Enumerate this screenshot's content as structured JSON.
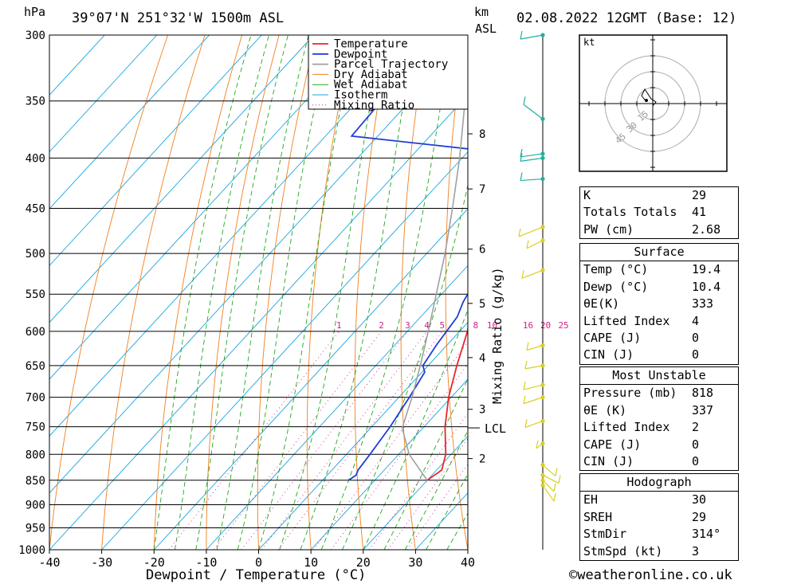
{
  "header": {
    "pressure_unit": "hPa",
    "location": "39°07'N  251°32'W  1500m  ASL",
    "height_unit": "km",
    "height_ref": "ASL",
    "datetime": "02.08.2022  12GMT  (Base: 12)"
  },
  "footer": {
    "credit": "©weatheronline.co.uk"
  },
  "colors": {
    "temperature": "#e8262b",
    "dewpoint": "#1f3fd6",
    "parcel": "#a0a0a0",
    "dry_adiabat": "#f07f1e",
    "wet_adiabat": "#1ea81e",
    "isotherm": "#1aa6e0",
    "mixing_ratio": "#d0218a",
    "wind": "#d8d020",
    "wind_upper": "#20b0a0"
  },
  "chart_data": {
    "type": "line",
    "title": "",
    "xlabel": "Dewpoint / Temperature (°C)",
    "ylabel": "hPa",
    "xlim": [
      -40,
      40
    ],
    "ylim": [
      1000,
      300
    ],
    "x_ticks": [
      "-40",
      "-30",
      "-20",
      "-10",
      "0",
      "10",
      "20",
      "30",
      "40"
    ],
    "pressure_levels": [
      "300",
      "350",
      "400",
      "450",
      "500",
      "550",
      "600",
      "650",
      "700",
      "750",
      "800",
      "850",
      "900",
      "950",
      "1000"
    ],
    "height_ticks": [
      {
        "label": "8",
        "p": 378
      },
      {
        "label": "7",
        "p": 430
      },
      {
        "label": "6",
        "p": 495
      },
      {
        "label": "5",
        "p": 562
      },
      {
        "label": "4",
        "p": 638
      },
      {
        "label": "3",
        "p": 720
      },
      {
        "label": "2",
        "p": 808
      }
    ],
    "lcl": {
      "label": "LCL",
      "p": 752
    },
    "mixing_ratio_axis_label": "Mixing Ratio (g/kg)",
    "mixing_ratio_labels": [
      "1",
      "2",
      "3",
      "4",
      "5",
      "8",
      "10",
      "16",
      "20",
      "25"
    ],
    "mixing_ratio_values": [
      1,
      2,
      3,
      4,
      5,
      8,
      10,
      16,
      20,
      25
    ],
    "legend": [
      "Temperature",
      "Dewpoint",
      "Parcel Trajectory",
      "Dry Adiabat",
      "Wet Adiabat",
      "Isotherm",
      "Mixing Ratio"
    ],
    "legend_position": "top-right",
    "series": [
      {
        "name": "Temperature",
        "points": [
          [
            850,
            20.0
          ],
          [
            830,
            21.0
          ],
          [
            800,
            19.0
          ],
          [
            750,
            14.0
          ],
          [
            700,
            9.5
          ],
          [
            650,
            5.5
          ],
          [
            600,
            1.5
          ],
          [
            570,
            -1.5
          ],
          [
            560,
            -0.5
          ],
          [
            550,
            -2.0
          ],
          [
            525,
            -4.5
          ],
          [
            500,
            -7.0
          ],
          [
            490,
            -8.5
          ],
          [
            470,
            -10.0
          ],
          [
            450,
            -11.5
          ],
          [
            430,
            -14.5
          ],
          [
            410,
            -17.5
          ],
          [
            400,
            -19.0
          ],
          [
            390,
            -19.5
          ],
          [
            375,
            -20.0
          ],
          [
            365,
            -21.0
          ]
        ]
      },
      {
        "name": "Dewpoint",
        "points": [
          [
            850,
            5.0
          ],
          [
            840,
            5.5
          ],
          [
            830,
            5.0
          ],
          [
            800,
            4.5
          ],
          [
            750,
            3.5
          ],
          [
            700,
            2.0
          ],
          [
            660,
            0.5
          ],
          [
            650,
            -1.0
          ],
          [
            620,
            -2.0
          ],
          [
            580,
            -3.0
          ],
          [
            560,
            -4.5
          ],
          [
            550,
            -5.0
          ],
          [
            530,
            -6.0
          ],
          [
            510,
            -8.5
          ],
          [
            500,
            -10.5
          ],
          [
            490,
            -11.5
          ],
          [
            480,
            -11.0
          ],
          [
            465,
            -10.0
          ],
          [
            450,
            -12.0
          ],
          [
            440,
            -14.5
          ],
          [
            425,
            -15.0
          ],
          [
            410,
            -16.0
          ],
          [
            400,
            -16.5
          ],
          [
            398,
            -17.0
          ],
          [
            380,
            -55.0
          ],
          [
            350,
            -55.5
          ],
          [
            300,
            -56.0
          ]
        ]
      },
      {
        "name": "Parcel Trajectory",
        "points": [
          [
            850,
            20.0
          ],
          [
            800,
            12.0
          ],
          [
            752,
            6.0
          ],
          [
            700,
            2.5
          ],
          [
            650,
            -1.5
          ],
          [
            600,
            -6.0
          ],
          [
            550,
            -11.0
          ],
          [
            500,
            -16.5
          ],
          [
            450,
            -23.0
          ],
          [
            400,
            -30.5
          ],
          [
            350,
            -39.5
          ],
          [
            300,
            -50.0
          ]
        ]
      }
    ]
  },
  "hodograph": {
    "unit": "kt",
    "rings": [
      "15",
      "30",
      "45"
    ]
  },
  "indices": [
    {
      "label": "K",
      "value": "29"
    },
    {
      "label": "Totals Totals",
      "value": "41"
    },
    {
      "label": "PW (cm)",
      "value": "2.68"
    }
  ],
  "surface": {
    "heading": "Surface",
    "rows": [
      {
        "label": "Temp (°C)",
        "value": "19.4"
      },
      {
        "label": "Dewp (°C)",
        "value": "10.4"
      },
      {
        "label": "θE(K)",
        "value": "333"
      },
      {
        "label": "Lifted Index",
        "value": "4"
      },
      {
        "label": "CAPE (J)",
        "value": "0"
      },
      {
        "label": "CIN (J)",
        "value": "0"
      }
    ]
  },
  "most_unstable": {
    "heading": "Most Unstable",
    "rows": [
      {
        "label": "Pressure (mb)",
        "value": "818"
      },
      {
        "label": "θE (K)",
        "value": "337"
      },
      {
        "label": "Lifted Index",
        "value": "2"
      },
      {
        "label": "CAPE (J)",
        "value": "0"
      },
      {
        "label": "CIN (J)",
        "value": "0"
      }
    ]
  },
  "hodograph_params": {
    "heading": "Hodograph",
    "rows": [
      {
        "label": "EH",
        "value": "30"
      },
      {
        "label": "SREH",
        "value": "29"
      },
      {
        "label": "StmDir",
        "value": "314°"
      },
      {
        "label": "StmSpd (kt)",
        "value": "3"
      }
    ]
  }
}
